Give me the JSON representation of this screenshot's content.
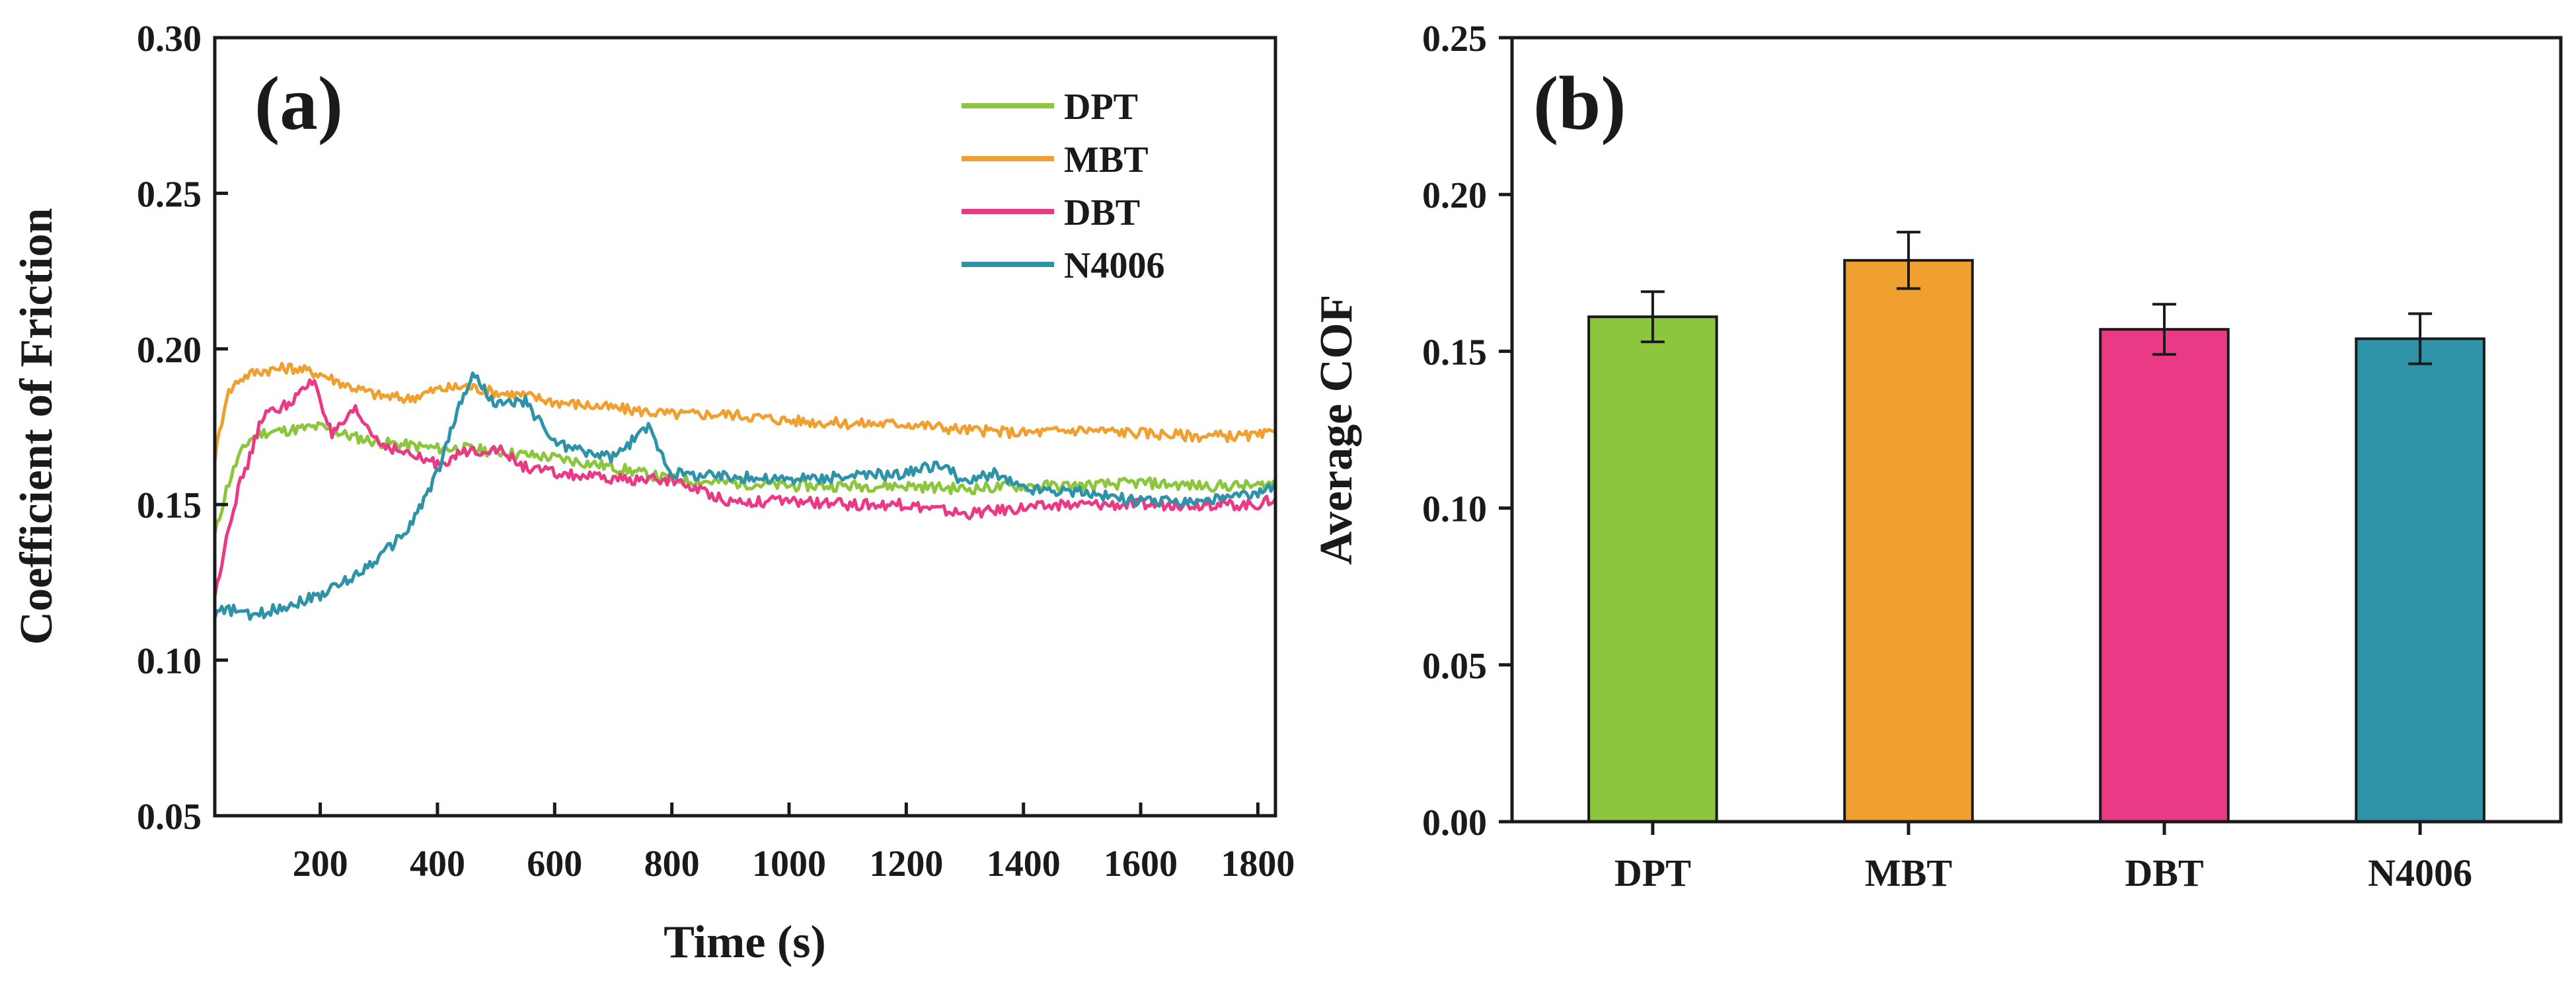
{
  "chart_data": [
    {
      "type": "line",
      "panel_label": "(a)",
      "xlabel": "Time (s)",
      "ylabel": "Coefficient of Friction",
      "xlim": [
        20,
        1830
      ],
      "ylim": [
        0.05,
        0.3
      ],
      "xticks": [
        200,
        400,
        600,
        800,
        1000,
        1200,
        1400,
        1600,
        1800
      ],
      "yticks": [
        0.05,
        0.1,
        0.15,
        0.2,
        0.25,
        0.3
      ],
      "xtick_labels": [
        "200",
        "400",
        "600",
        "800",
        "1000",
        "1200",
        "1400",
        "1600",
        "1800"
      ],
      "ytick_labels": [
        "0.05",
        "0.10",
        "0.15",
        "0.20",
        "0.25",
        "0.30"
      ],
      "legend_position": "top-right",
      "grid": false,
      "series": [
        {
          "name": "DPT",
          "color": "#8cc63f",
          "x": [
            20,
            40,
            60,
            80,
            100,
            150,
            200,
            250,
            300,
            350,
            400,
            450,
            500,
            550,
            600,
            700,
            800,
            900,
            1000,
            1100,
            1200,
            1300,
            1400,
            1500,
            1600,
            1700,
            1800,
            1830
          ],
          "y": [
            0.14,
            0.155,
            0.165,
            0.171,
            0.173,
            0.174,
            0.175,
            0.172,
            0.17,
            0.169,
            0.168,
            0.168,
            0.167,
            0.166,
            0.165,
            0.162,
            0.158,
            0.157,
            0.156,
            0.156,
            0.156,
            0.155,
            0.156,
            0.156,
            0.157,
            0.156,
            0.156,
            0.157
          ]
        },
        {
          "name": "MBT",
          "color": "#f0a030",
          "x": [
            20,
            40,
            60,
            80,
            100,
            150,
            200,
            250,
            300,
            350,
            400,
            450,
            500,
            550,
            600,
            700,
            800,
            900,
            1000,
            1100,
            1200,
            1300,
            1400,
            1500,
            1600,
            1700,
            1800,
            1830
          ],
          "y": [
            0.165,
            0.185,
            0.19,
            0.192,
            0.193,
            0.194,
            0.192,
            0.188,
            0.185,
            0.184,
            0.187,
            0.188,
            0.186,
            0.185,
            0.183,
            0.181,
            0.179,
            0.179,
            0.177,
            0.176,
            0.176,
            0.174,
            0.173,
            0.174,
            0.173,
            0.172,
            0.172,
            0.173
          ]
        },
        {
          "name": "DBT",
          "color": "#ea3a86",
          "x": [
            20,
            40,
            60,
            80,
            100,
            150,
            190,
            220,
            260,
            300,
            350,
            400,
            450,
            500,
            550,
            600,
            700,
            800,
            900,
            1000,
            1100,
            1200,
            1300,
            1400,
            1500,
            1600,
            1700,
            1800,
            1830
          ],
          "y": [
            0.12,
            0.14,
            0.155,
            0.165,
            0.178,
            0.183,
            0.19,
            0.172,
            0.18,
            0.17,
            0.166,
            0.163,
            0.167,
            0.168,
            0.162,
            0.16,
            0.158,
            0.158,
            0.151,
            0.151,
            0.15,
            0.15,
            0.147,
            0.149,
            0.15,
            0.15,
            0.15,
            0.15,
            0.152
          ]
        },
        {
          "name": "N4006",
          "color": "#2e93a8",
          "x": [
            20,
            40,
            60,
            80,
            100,
            150,
            200,
            250,
            300,
            350,
            400,
            430,
            460,
            500,
            550,
            600,
            650,
            700,
            760,
            800,
            900,
            1000,
            1100,
            1200,
            1260,
            1300,
            1350,
            1400,
            1500,
            1600,
            1700,
            1800,
            1830
          ],
          "y": [
            0.115,
            0.116,
            0.116,
            0.114,
            0.115,
            0.118,
            0.121,
            0.126,
            0.133,
            0.142,
            0.16,
            0.178,
            0.192,
            0.182,
            0.183,
            0.17,
            0.167,
            0.165,
            0.175,
            0.16,
            0.159,
            0.158,
            0.159,
            0.16,
            0.163,
            0.157,
            0.16,
            0.155,
            0.154,
            0.151,
            0.151,
            0.153,
            0.157
          ]
        }
      ]
    },
    {
      "type": "bar",
      "panel_label": "(b)",
      "xlabel": "",
      "ylabel": "Average COF",
      "ylim": [
        0.0,
        0.25
      ],
      "yticks": [
        0.0,
        0.05,
        0.1,
        0.15,
        0.2,
        0.25
      ],
      "ytick_labels": [
        "0.00",
        "0.05",
        "0.10",
        "0.15",
        "0.20",
        "0.25"
      ],
      "categories": [
        "DPT",
        "MBT",
        "DBT",
        "N4006"
      ],
      "values": [
        0.161,
        0.179,
        0.157,
        0.154
      ],
      "errors": [
        0.008,
        0.009,
        0.008,
        0.008
      ],
      "colors": [
        "#8cc63f",
        "#f0a030",
        "#ea3a86",
        "#2e93a8"
      ],
      "grid": false
    }
  ]
}
